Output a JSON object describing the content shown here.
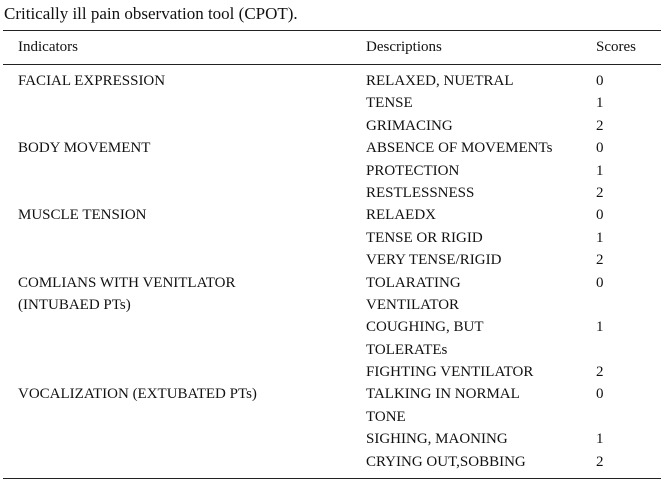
{
  "caption": "Critically ill pain observation tool (CPOT).",
  "headers": {
    "indicators": "Indicators",
    "descriptions": "Descriptions",
    "scores": "Scores"
  },
  "rows": [
    {
      "indicator": "FACIAL EXPRESSION",
      "description": "RELAXED, NUETRAL",
      "score": "0"
    },
    {
      "indicator": "",
      "description": "TENSE",
      "score": "1"
    },
    {
      "indicator": "",
      "description": "GRIMACING",
      "score": "2"
    },
    {
      "indicator": "BODY MOVEMENT",
      "description": "ABSENCE OF MOVEMENTs",
      "score": "0"
    },
    {
      "indicator": "",
      "description": "PROTECTION",
      "score": "1"
    },
    {
      "indicator": "",
      "description": "RESTLESSNESS",
      "score": "2"
    },
    {
      "indicator": "MUSCLE TENSION",
      "description": "RELAEDX",
      "score": "0"
    },
    {
      "indicator": "",
      "description": "TENSE OR RIGID",
      "score": "1"
    },
    {
      "indicator": "",
      "description": "VERY TENSE/RIGID",
      "score": "2"
    },
    {
      "indicator": "COMLIANS WITH VENITLATOR",
      "description": "TOLARATING",
      "score": "0"
    },
    {
      "indicator": "(INTUBAED PTs)",
      "description": "VENTILATOR",
      "score": ""
    },
    {
      "indicator": "",
      "description": "COUGHING, BUT",
      "score": "1"
    },
    {
      "indicator": "",
      "description": "TOLERATEs",
      "score": ""
    },
    {
      "indicator": "",
      "description": "FIGHTING VENTILATOR",
      "score": "2"
    },
    {
      "indicator": "VOCALIZATION (EXTUBATED PTs)",
      "description": "TALKING IN NORMAL",
      "score": "0"
    },
    {
      "indicator": "",
      "description": "TONE",
      "score": ""
    },
    {
      "indicator": "",
      "description": "SIGHING, MAONING",
      "score": "1"
    },
    {
      "indicator": "",
      "description": "CRYING OUT,SOBBING",
      "score": "2"
    }
  ]
}
